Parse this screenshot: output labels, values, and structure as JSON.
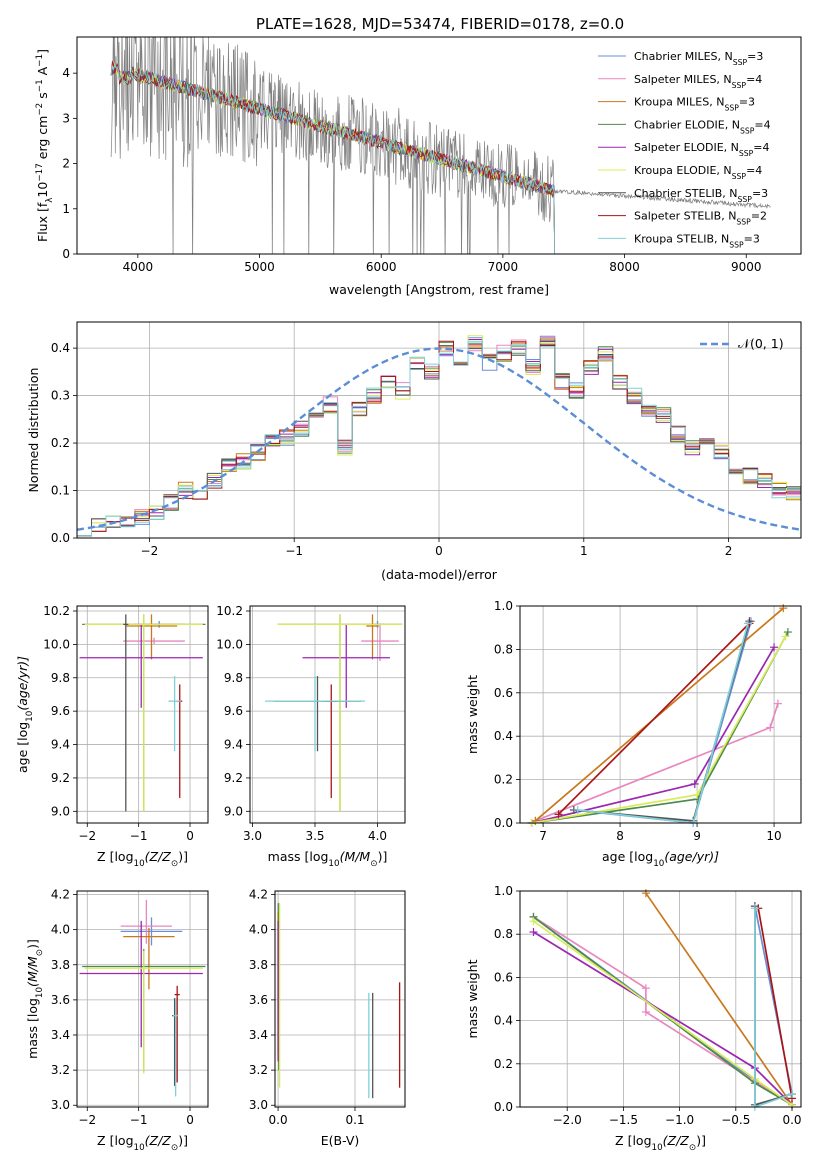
{
  "figure": {
    "title": "PLATE=1628, MJD=53474, FIBERID=0178, z=0.0",
    "colors": {
      "Chabrier MILES": "#6a8fd8",
      "Salpeter MILES": "#e887c0",
      "Kroupa MILES": "#c9781c",
      "Chabrier ELODIE": "#4d8a4d",
      "Salpeter ELODIE": "#9b27b0",
      "Kroupa ELODIE": "#d8ec5a",
      "Chabrier STELIB": "#555555",
      "Salpeter STELIB": "#aa1414",
      "Kroupa STELIB": "#7fd0d8",
      "observed": "#808080"
    }
  },
  "chart_data": [
    {
      "id": "spectrum",
      "type": "line",
      "title": "PLATE=1628, MJD=53474, FIBERID=0178, z=0.0",
      "xlabel": "wavelength [Angstrom, rest frame]",
      "ylabel": "Flux [f",
      "ylabel_sub": "λ",
      "ylabel_rest": "10",
      "ylabel_exp": "−17",
      "ylabel_units": " erg cm",
      "ylabel_units_exp": "−2",
      "ylabel_units2": " s",
      "ylabel_units2_exp": "−1",
      "ylabel_units3": " A",
      "ylabel_units3_exp": "−1",
      "ylabel_close": "]",
      "xlim": [
        3500,
        9450
      ],
      "ylim": [
        0,
        4.8
      ],
      "xticks": [
        "4000",
        "5000",
        "6000",
        "7000",
        "8000",
        "9000"
      ],
      "xtick_values": [
        4000,
        5000,
        6000,
        7000,
        8000,
        9000
      ],
      "yticks": [
        "0",
        "1",
        "2",
        "3",
        "4"
      ],
      "ytick_values": [
        0,
        1,
        2,
        3,
        4
      ],
      "observed_range": [
        3780,
        9200
      ],
      "model_range": [
        3780,
        7420
      ],
      "legend_position": "top-right",
      "legend": [
        {
          "name": "Chabrier MILES, N",
          "sub": "SSP",
          "eq": "=3"
        },
        {
          "name": "Salpeter MILES, N",
          "sub": "SSP",
          "eq": "=4"
        },
        {
          "name": "Kroupa MILES, N",
          "sub": "SSP",
          "eq": "=3"
        },
        {
          "name": "Chabrier ELODIE, N",
          "sub": "SSP",
          "eq": "=4"
        },
        {
          "name": "Salpeter ELODIE, N",
          "sub": "SSP",
          "eq": "=4"
        },
        {
          "name": "Kroupa ELODIE, N",
          "sub": "SSP",
          "eq": "=4"
        },
        {
          "name": "Chabrier STELIB, N",
          "sub": "SSP",
          "eq": "=3"
        },
        {
          "name": "Salpeter STELIB, N",
          "sub": "SSP",
          "eq": "=2"
        },
        {
          "name": "Kroupa STELIB, N",
          "sub": "SSP",
          "eq": "=3"
        }
      ]
    },
    {
      "id": "residuals",
      "type": "histogram",
      "xlabel": "(data-model)/error",
      "ylabel": "Normed distribution",
      "xlim": [
        -2.5,
        2.5
      ],
      "ylim": [
        0,
        0.455
      ],
      "xticks": [
        "−2",
        "−1",
        "0",
        "1",
        "2"
      ],
      "xtick_values": [
        -2,
        -1,
        0,
        1,
        2
      ],
      "yticks": [
        "0.0",
        "0.1",
        "0.2",
        "0.3",
        "0.4"
      ],
      "ytick_values": [
        0,
        0.1,
        0.2,
        0.3,
        0.4
      ],
      "grid": true,
      "legend_position": "top-right",
      "legend": "𝒩(0, 1)",
      "bin_width": 0.1,
      "bin_start": -2.5,
      "reference_values": [
        0.02,
        0.025,
        0.04,
        0.035,
        0.045,
        0.05,
        0.075,
        0.1,
        0.09,
        0.12,
        0.15,
        0.16,
        0.18,
        0.2,
        0.21,
        0.23,
        0.25,
        0.28,
        0.19,
        0.27,
        0.3,
        0.33,
        0.31,
        0.37,
        0.35,
        0.4,
        0.38,
        0.41,
        0.37,
        0.39,
        0.4,
        0.36,
        0.41,
        0.33,
        0.31,
        0.36,
        0.39,
        0.33,
        0.3,
        0.27,
        0.26,
        0.22,
        0.19,
        0.2,
        0.18,
        0.15,
        0.13,
        0.12,
        0.1,
        0.095,
        0.09,
        0.095,
        0.085,
        0.08,
        0.07,
        0.06,
        0.05,
        0.045,
        0.04,
        0.035
      ]
    },
    {
      "id": "age-vs-Z",
      "type": "errorbar",
      "xlabel": "Z [log",
      "xlabel_sub": "10",
      "xlabel_rest": "(Z/Z",
      "xlabel_sub2": "⊙",
      "xlabel_close": ")]",
      "ylabel": "age  [log",
      "ylabel_sub": "10",
      "ylabel_rest": "(age/yr)]",
      "xlim": [
        -2.2,
        0.35
      ],
      "ylim": [
        8.93,
        10.23
      ],
      "xticks": [
        "−2",
        "−1",
        "0"
      ],
      "xtick_values": [
        -2,
        -1,
        0
      ],
      "yticks": [
        "9.0",
        "9.2",
        "9.4",
        "9.6",
        "9.8",
        "10.0",
        "10.2"
      ],
      "ytick_values": [
        9.0,
        9.2,
        9.4,
        9.6,
        9.8,
        10.0,
        10.2
      ],
      "grid": true,
      "points": [
        {
          "series": "Chabrier MILES",
          "x": -0.6,
          "xerr": 0.5,
          "y": 10.12,
          "yerr": [
            0.02,
            0.02
          ]
        },
        {
          "series": "Salpeter MILES",
          "x": -0.7,
          "xerr": 0.6,
          "y": 10.02,
          "yerr": [
            0.02,
            0.02
          ]
        },
        {
          "series": "Kroupa MILES",
          "x": -0.75,
          "xerr": 0.5,
          "y": 10.11,
          "yerr": [
            0.2,
            0.07
          ]
        },
        {
          "series": "Chabrier ELODIE",
          "x": -0.9,
          "xerr": 1.2,
          "y": 10.12,
          "yerr": [
            1.12,
            0.06
          ]
        },
        {
          "series": "Salpeter ELODIE",
          "x": -0.95,
          "xerr": 1.2,
          "y": 9.92,
          "yerr": [
            0.3,
            0.2
          ]
        },
        {
          "series": "Kroupa ELODIE",
          "x": -0.9,
          "xerr": 1.15,
          "y": 10.12,
          "yerr": [
            1.12,
            0.06
          ]
        },
        {
          "series": "Chabrier STELIB",
          "x": -1.25,
          "xerr": 0.05,
          "y": 10.12,
          "yerr": [
            1.12,
            0.06
          ]
        },
        {
          "series": "Salpeter STELIB",
          "x": -0.2,
          "xerr": 0.05,
          "y": 9.66,
          "yerr": [
            0.58,
            0.1
          ]
        },
        {
          "series": "Kroupa STELIB",
          "x": -0.3,
          "xerr": 0.12,
          "y": 9.66,
          "yerr": [
            0.3,
            0.15
          ]
        }
      ]
    },
    {
      "id": "age-vs-mass",
      "type": "errorbar",
      "xlabel": "mass [log",
      "xlabel_sub": "10",
      "xlabel_rest": "(M/M",
      "xlabel_sub2": "⊙",
      "xlabel_close": ")]",
      "xlim": [
        2.98,
        4.22
      ],
      "ylim": [
        8.93,
        10.23
      ],
      "xticks": [
        "3.0",
        "3.5",
        "4.0"
      ],
      "xtick_values": [
        3.0,
        3.5,
        4.0
      ],
      "yticks": [
        "9.0",
        "9.2",
        "9.4",
        "9.6",
        "9.8",
        "10.0",
        "10.2"
      ],
      "ytick_values": [
        9.0,
        9.2,
        9.4,
        9.6,
        9.8,
        10.0,
        10.2
      ],
      "grid": true,
      "points": [
        {
          "series": "Chabrier MILES",
          "x": 4.0,
          "xerr": 0.05,
          "y": 10.12,
          "yerr": [
            0.02,
            0.02
          ]
        },
        {
          "series": "Salpeter MILES",
          "x": 4.02,
          "xerr": 0.15,
          "y": 10.02,
          "yerr": [
            0.12,
            0.1
          ]
        },
        {
          "series": "Kroupa MILES",
          "x": 3.96,
          "xerr": 0.05,
          "y": 10.11,
          "yerr": [
            0.2,
            0.07
          ]
        },
        {
          "series": "Chabrier ELODIE",
          "x": 3.7,
          "xerr": 0.5,
          "y": 10.12,
          "yerr": [
            1.12,
            0.06
          ]
        },
        {
          "series": "Salpeter ELODIE",
          "x": 3.75,
          "xerr": 0.35,
          "y": 9.92,
          "yerr": [
            0.3,
            0.2
          ]
        },
        {
          "series": "Kroupa ELODIE",
          "x": 3.7,
          "xerr": 0.5,
          "y": 10.12,
          "yerr": [
            1.12,
            0.06
          ]
        },
        {
          "series": "Chabrier STELIB",
          "x": 3.52,
          "xerr": 0.35,
          "y": 9.66,
          "yerr": [
            0.3,
            0.15
          ]
        },
        {
          "series": "Salpeter STELIB",
          "x": 3.63,
          "xerr": 0.05,
          "y": 9.66,
          "yerr": [
            0.58,
            0.1
          ]
        },
        {
          "series": "Kroupa STELIB",
          "x": 3.5,
          "xerr": 0.4,
          "y": 9.66,
          "yerr": [
            0.3,
            0.15
          ]
        }
      ]
    },
    {
      "id": "weight-vs-age",
      "type": "line",
      "xlabel": "age  [log",
      "xlabel_sub": "10",
      "xlabel_rest": "(age/yr)]",
      "ylabel": "mass weight",
      "xlim": [
        6.7,
        10.35
      ],
      "ylim": [
        0,
        1.0
      ],
      "xticks": [
        "7",
        "8",
        "9",
        "10"
      ],
      "xtick_values": [
        7,
        8,
        9,
        10
      ],
      "yticks": [
        "0.0",
        "0.2",
        "0.4",
        "0.6",
        "0.8",
        "1.0"
      ],
      "ytick_values": [
        0,
        0.2,
        0.4,
        0.6,
        0.8,
        1.0
      ],
      "grid": true,
      "series": [
        {
          "name": "Chabrier MILES",
          "x": [
            7.4,
            8.95,
            9.7
          ],
          "y": [
            0.06,
            0.0,
            0.93
          ]
        },
        {
          "name": "Salpeter MILES",
          "x": [
            6.9,
            9.95,
            10.05
          ],
          "y": [
            0.01,
            0.44,
            0.55
          ]
        },
        {
          "name": "Kroupa MILES",
          "x": [
            6.9,
            10.12
          ],
          "y": [
            0.01,
            0.99
          ]
        },
        {
          "name": "Chabrier ELODIE",
          "x": [
            6.85,
            9.0,
            10.18
          ],
          "y": [
            0.0,
            0.11,
            0.88
          ]
        },
        {
          "name": "Salpeter ELODIE",
          "x": [
            6.85,
            8.97,
            10.0
          ],
          "y": [
            0.0,
            0.18,
            0.81
          ]
        },
        {
          "name": "Kroupa ELODIE",
          "x": [
            6.85,
            9.0,
            10.15
          ],
          "y": [
            0.0,
            0.13,
            0.86
          ]
        },
        {
          "name": "Chabrier STELIB",
          "x": [
            7.4,
            8.95,
            9.68
          ],
          "y": [
            0.06,
            0.01,
            0.93
          ]
        },
        {
          "name": "Salpeter STELIB",
          "x": [
            7.2,
            9.68
          ],
          "y": [
            0.04,
            0.92
          ]
        },
        {
          "name": "Kroupa STELIB",
          "x": [
            7.45,
            8.95,
            9.66
          ],
          "y": [
            0.06,
            0.0,
            0.92
          ]
        }
      ]
    },
    {
      "id": "mass-vs-Z",
      "type": "errorbar",
      "xlabel": "Z [log",
      "xlabel_sub": "10",
      "xlabel_rest": "(Z/Z",
      "xlabel_sub2": "⊙",
      "xlabel_close": ")]",
      "ylabel": "mass [log",
      "ylabel_sub": "10",
      "ylabel_rest": "(M/M",
      "ylabel_sub2": "⊙",
      "ylabel_close": ")]",
      "xlim": [
        -2.2,
        0.35
      ],
      "ylim": [
        2.99,
        4.22
      ],
      "xticks": [
        "−2",
        "−1",
        "0"
      ],
      "xtick_values": [
        -2,
        -1,
        0
      ],
      "yticks": [
        "3.0",
        "3.2",
        "3.4",
        "3.6",
        "3.8",
        "4.0",
        "4.2"
      ],
      "ytick_values": [
        3.0,
        3.2,
        3.4,
        3.6,
        3.8,
        4.0,
        4.2
      ],
      "grid": true,
      "points": [
        {
          "series": "Chabrier MILES",
          "x": -0.75,
          "xerr": 0.6,
          "y": 3.99,
          "yerr": [
            0.08,
            0.08
          ]
        },
        {
          "series": "Salpeter MILES",
          "x": -0.85,
          "xerr": 0.5,
          "y": 4.02,
          "yerr": [
            0.1,
            0.15
          ]
        },
        {
          "series": "Kroupa MILES",
          "x": -0.8,
          "xerr": 0.5,
          "y": 3.96,
          "yerr": [
            0.3,
            0.05
          ]
        },
        {
          "series": "Chabrier ELODIE",
          "x": -0.9,
          "xerr": 1.2,
          "y": 3.79,
          "yerr": [
            0.6,
            0.1
          ]
        },
        {
          "series": "Salpeter ELODIE",
          "x": -0.95,
          "xerr": 1.2,
          "y": 3.75,
          "yerr": [
            0.42,
            0.3
          ]
        },
        {
          "series": "Kroupa ELODIE",
          "x": -0.9,
          "xerr": 1.15,
          "y": 3.78,
          "yerr": [
            0.6,
            0.1
          ]
        },
        {
          "series": "Chabrier STELIB",
          "x": -0.3,
          "xerr": 0.05,
          "y": 3.51,
          "yerr": [
            0.4,
            0.1
          ]
        },
        {
          "series": "Salpeter STELIB",
          "x": -0.25,
          "xerr": 0.05,
          "y": 3.63,
          "yerr": [
            0.5,
            0.05
          ]
        },
        {
          "series": "Kroupa STELIB",
          "x": -0.28,
          "xerr": 0.05,
          "y": 3.51,
          "yerr": [
            0.46,
            0.1
          ]
        }
      ]
    },
    {
      "id": "mass-vs-EBV",
      "type": "errorbar",
      "xlabel": "E(B-V)",
      "xlim": [
        -0.004,
        0.165
      ],
      "ylim": [
        2.99,
        4.22
      ],
      "xticks": [
        "0.0",
        "0.1"
      ],
      "xtick_values": [
        0.0,
        0.1
      ],
      "yticks": [
        "3.0",
        "3.2",
        "3.4",
        "3.6",
        "3.8",
        "4.0",
        "4.2"
      ],
      "ytick_values": [
        3.0,
        3.2,
        3.4,
        3.6,
        3.8,
        4.0,
        4.2
      ],
      "grid": true,
      "points": [
        {
          "series": "Chabrier MILES",
          "x": 0.0,
          "xerr": 0,
          "y": 3.85,
          "yerr": [
            0.4,
            0.3
          ]
        },
        {
          "series": "Salpeter MILES",
          "x": 0.001,
          "xerr": 0,
          "y": 3.9,
          "yerr": [
            0.4,
            0.25
          ]
        },
        {
          "series": "Kroupa MILES",
          "x": 0.0,
          "xerr": 0,
          "y": 3.8,
          "yerr": [
            0.5,
            0.3
          ]
        },
        {
          "series": "Chabrier ELODIE",
          "x": 0.001,
          "xerr": 0,
          "y": 3.7,
          "yerr": [
            0.5,
            0.45
          ]
        },
        {
          "series": "Salpeter ELODIE",
          "x": 0.0,
          "xerr": 0,
          "y": 3.75,
          "yerr": [
            0.5,
            0.3
          ]
        },
        {
          "series": "Kroupa ELODIE",
          "x": 0.002,
          "xerr": 0,
          "y": 3.7,
          "yerr": [
            0.6,
            0.45
          ]
        },
        {
          "series": "Chabrier STELIB",
          "x": 0.123,
          "xerr": 0,
          "y": 3.34,
          "yerr": [
            0.3,
            0.3
          ]
        },
        {
          "series": "Salpeter STELIB",
          "x": 0.158,
          "xerr": 0,
          "y": 3.4,
          "yerr": [
            0.3,
            0.3
          ]
        },
        {
          "series": "Kroupa STELIB",
          "x": 0.118,
          "xerr": 0,
          "y": 3.34,
          "yerr": [
            0.3,
            0.3
          ]
        }
      ]
    },
    {
      "id": "weight-vs-Z",
      "type": "line",
      "xlabel": "Z [log",
      "xlabel_sub": "10",
      "xlabel_rest": "(Z/Z",
      "xlabel_sub2": "⊙",
      "xlabel_close": ")]",
      "ylabel": "mass weight",
      "xlim": [
        -2.42,
        0.08
      ],
      "ylim": [
        0,
        1.0
      ],
      "xticks": [
        "−2.0",
        "−1.5",
        "−1.0",
        "−0.5",
        "0.0"
      ],
      "xtick_values": [
        -2.0,
        -1.5,
        -1.0,
        -0.5,
        0.0
      ],
      "yticks": [
        "0.0",
        "0.2",
        "0.4",
        "0.6",
        "0.8",
        "1.0"
      ],
      "ytick_values": [
        0,
        0.2,
        0.4,
        0.6,
        0.8,
        1.0
      ],
      "grid": true,
      "series": [
        {
          "name": "Chabrier MILES",
          "x": [
            -2.3,
            -0.33,
            -0.33,
            0.0
          ],
          "y": [
            0.88,
            0.12,
            0.93,
            0.06
          ]
        },
        {
          "name": "Salpeter MILES",
          "x": [
            -2.3,
            -1.3,
            -1.3,
            0.0
          ],
          "y": [
            0.88,
            0.55,
            0.44,
            0.01
          ]
        },
        {
          "name": "Kroupa MILES",
          "x": [
            -1.3,
            0.0
          ],
          "y": [
            0.99,
            0.01
          ]
        },
        {
          "name": "Chabrier ELODIE",
          "x": [
            -2.3,
            -0.33,
            0.0
          ],
          "y": [
            0.88,
            0.11,
            0.01
          ]
        },
        {
          "name": "Salpeter ELODIE",
          "x": [
            -2.3,
            -0.33,
            0.0
          ],
          "y": [
            0.81,
            0.18,
            0.01
          ]
        },
        {
          "name": "Kroupa ELODIE",
          "x": [
            -2.3,
            -0.33,
            0.0
          ],
          "y": [
            0.86,
            0.13,
            0.01
          ]
        },
        {
          "name": "Chabrier STELIB",
          "x": [
            -0.33,
            -0.33,
            0.0
          ],
          "y": [
            0.93,
            0.01,
            0.06
          ]
        },
        {
          "name": "Salpeter STELIB",
          "x": [
            -0.3,
            0.0
          ],
          "y": [
            0.92,
            0.04
          ]
        },
        {
          "name": "Kroupa STELIB",
          "x": [
            -0.33,
            -0.33,
            0.0
          ],
          "y": [
            0.92,
            0.0,
            0.06
          ]
        }
      ]
    }
  ]
}
